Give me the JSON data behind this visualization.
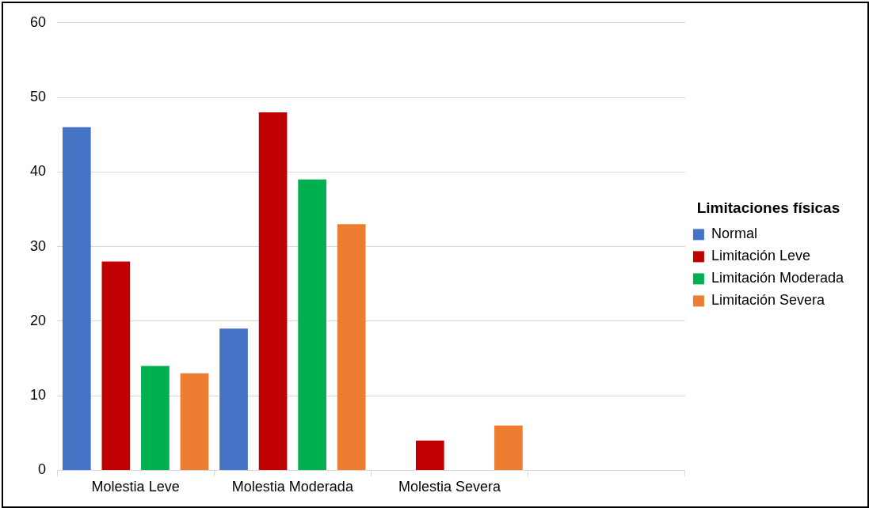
{
  "chart_data": {
    "type": "bar",
    "categories": [
      "Molestia Leve",
      "Molestia Moderada",
      "Molestia Severa",
      null
    ],
    "series": [
      {
        "name": "Normal",
        "color": "#4472c4",
        "values": [
          46,
          19,
          null,
          null
        ]
      },
      {
        "name": "Limitación Leve",
        "color": "#c00000",
        "values": [
          28,
          48,
          4,
          null
        ]
      },
      {
        "name": "Limitación Moderada",
        "color": "#00b050",
        "values": [
          14,
          39,
          null,
          null
        ]
      },
      {
        "name": "Limitación Severa",
        "color": "#ed7d31",
        "values": [
          13,
          33,
          6,
          null
        ]
      }
    ],
    "legend_title": "Limitaciones físicas",
    "legend": "right",
    "ylim": [
      0,
      60
    ],
    "yticks": [
      0,
      10,
      20,
      30,
      40,
      50,
      60
    ],
    "grid": "y"
  }
}
